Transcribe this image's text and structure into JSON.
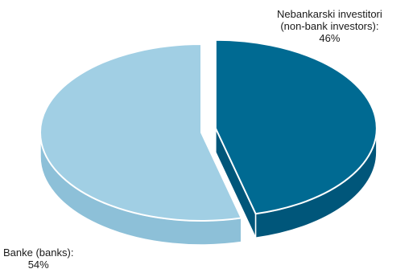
{
  "chart_data": {
    "type": "pie",
    "style": "3d-exploded",
    "slices": [
      {
        "key": "nonbank",
        "label_line1": "Nebankarski investitori",
        "label_line2": "(non-bank investors):",
        "percent_text": "46%",
        "value": 46,
        "color": "#006a92",
        "side_color": "#00567a",
        "exploded": true
      },
      {
        "key": "banks",
        "label_line1": "Banke (banks):",
        "percent_text": "54%",
        "value": 54,
        "color": "#a1cfe4",
        "side_color": "#8dc0d8",
        "exploded": false
      }
    ]
  }
}
